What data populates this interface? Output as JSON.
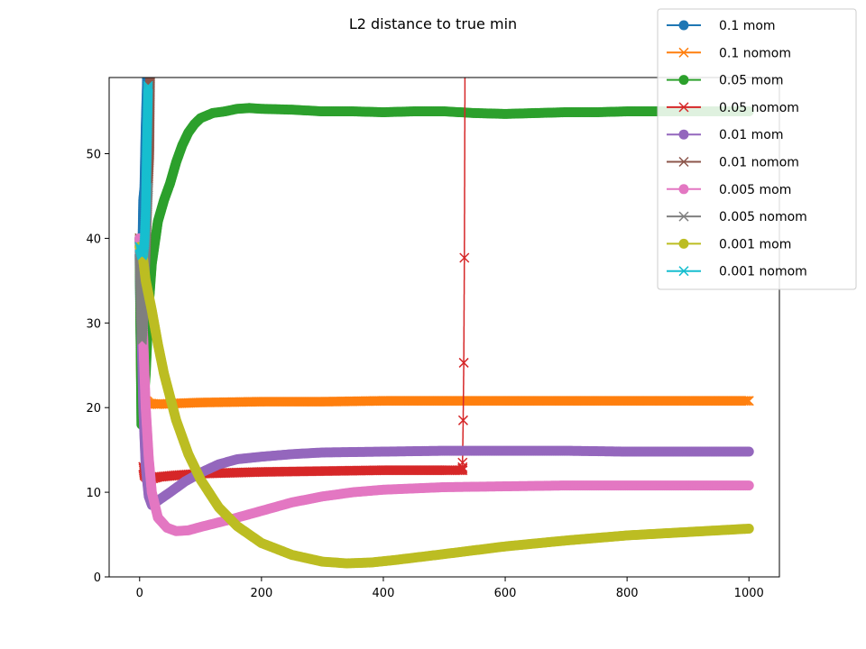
{
  "chart_data": {
    "type": "line",
    "title": "L2 distance to true min",
    "xlabel": "",
    "ylabel": "",
    "xlim": [
      -50,
      1050
    ],
    "ylim": [
      0,
      59
    ],
    "xticks": [
      0,
      200,
      400,
      600,
      800,
      1000
    ],
    "yticks": [
      0,
      10,
      20,
      30,
      40,
      50
    ],
    "grid": false,
    "legend_position": "top-right",
    "series": [
      {
        "name": "0.1 mom",
        "color": "#1f77b4",
        "marker": "o",
        "x": [
          0,
          2,
          4,
          6,
          8,
          10,
          12,
          14
        ],
        "y": [
          38,
          26,
          36,
          44.5,
          46,
          53,
          58,
          70
        ]
      },
      {
        "name": "0.1 nomom",
        "color": "#ff7f0e",
        "marker": "x",
        "x": [
          0,
          2,
          4,
          8,
          15,
          30,
          60,
          100,
          200,
          300,
          400,
          500,
          600,
          700,
          800,
          900,
          1000
        ],
        "y": [
          40,
          24,
          22,
          21,
          20.5,
          20.4,
          20.5,
          20.6,
          20.7,
          20.7,
          20.8,
          20.8,
          20.8,
          20.8,
          20.8,
          20.8,
          20.8
        ]
      },
      {
        "name": "0.05 mom",
        "color": "#2ca02c",
        "marker": "o",
        "x": [
          0,
          3,
          6,
          10,
          15,
          20,
          30,
          40,
          50,
          60,
          70,
          80,
          90,
          100,
          120,
          140,
          160,
          180,
          200,
          250,
          300,
          350,
          400,
          450,
          500,
          550,
          600,
          650,
          700,
          750,
          800,
          850,
          900,
          950,
          1000
        ],
        "y": [
          40,
          18,
          20,
          24,
          32,
          37,
          42,
          44.5,
          46.5,
          49,
          51,
          52.5,
          53.5,
          54.2,
          54.8,
          55.0,
          55.3,
          55.4,
          55.3,
          55.2,
          55.0,
          55.0,
          54.9,
          55.0,
          55.0,
          54.8,
          54.7,
          54.8,
          54.9,
          54.9,
          55.0,
          55.0,
          55.0,
          55.0,
          55.0
        ]
      },
      {
        "name": "0.05 nomom",
        "color": "#d62728",
        "marker": "x",
        "x": [
          0,
          2,
          4,
          8,
          15,
          30,
          60,
          100,
          200,
          300,
          400,
          500,
          530,
          530,
          531,
          532,
          533,
          534
        ],
        "y": [
          40,
          30,
          14,
          12,
          11.5,
          11.8,
          12.0,
          12.2,
          12.4,
          12.5,
          12.6,
          12.6,
          12.6,
          13.5,
          18.5,
          25.3,
          37.7,
          59.5
        ]
      },
      {
        "name": "0.01 mom",
        "color": "#9467bd",
        "marker": "o",
        "x": [
          0,
          3,
          6,
          10,
          15,
          20,
          30,
          50,
          75,
          100,
          130,
          160,
          200,
          250,
          300,
          400,
          500,
          600,
          700,
          800,
          900,
          1000
        ],
        "y": [
          40,
          30,
          20,
          13,
          9.5,
          8.5,
          9.0,
          10.0,
          11.3,
          12.3,
          13.3,
          13.9,
          14.2,
          14.5,
          14.7,
          14.8,
          14.9,
          14.9,
          14.9,
          14.8,
          14.8,
          14.8
        ]
      },
      {
        "name": "0.01 nomom",
        "color": "#8c564b",
        "marker": "x",
        "x": [
          0,
          3,
          6,
          10,
          13,
          16,
          18
        ],
        "y": [
          40,
          35,
          34,
          38,
          45,
          50,
          65
        ]
      },
      {
        "name": "0.005 mom",
        "color": "#e377c2",
        "marker": "o",
        "x": [
          0,
          3,
          6,
          10,
          15,
          20,
          30,
          45,
          60,
          80,
          100,
          150,
          200,
          250,
          300,
          350,
          400,
          500,
          600,
          700,
          800,
          900,
          1000
        ],
        "y": [
          40,
          34,
          28,
          20,
          14,
          10,
          7.0,
          5.8,
          5.4,
          5.5,
          5.9,
          6.8,
          7.8,
          8.8,
          9.5,
          10.0,
          10.3,
          10.6,
          10.7,
          10.8,
          10.8,
          10.8,
          10.8
        ]
      },
      {
        "name": "0.005 nomom",
        "color": "#7f7f7f",
        "marker": "x",
        "x": [
          0,
          2,
          4,
          6,
          8,
          10,
          12,
          14
        ],
        "y": [
          38,
          31,
          28,
          30,
          34,
          39,
          43,
          46
        ]
      },
      {
        "name": "0.001 mom",
        "color": "#bcbd22",
        "marker": "o",
        "x": [
          0,
          5,
          10,
          20,
          30,
          40,
          60,
          80,
          100,
          130,
          160,
          200,
          250,
          300,
          340,
          380,
          420,
          500,
          600,
          700,
          800,
          900,
          1000
        ],
        "y": [
          39,
          38,
          35,
          31.5,
          27.5,
          24,
          18.5,
          14.5,
          11.5,
          8.2,
          6.0,
          4.0,
          2.6,
          1.8,
          1.6,
          1.7,
          2.0,
          2.7,
          3.6,
          4.3,
          4.9,
          5.3,
          5.7
        ]
      },
      {
        "name": "0.001 nomom",
        "color": "#17becf",
        "marker": "x",
        "x": [
          0,
          2,
          4,
          6,
          8,
          10,
          12,
          14
        ],
        "y": [
          39,
          38.5,
          38,
          38.3,
          39.5,
          43,
          51,
          58
        ]
      }
    ]
  }
}
